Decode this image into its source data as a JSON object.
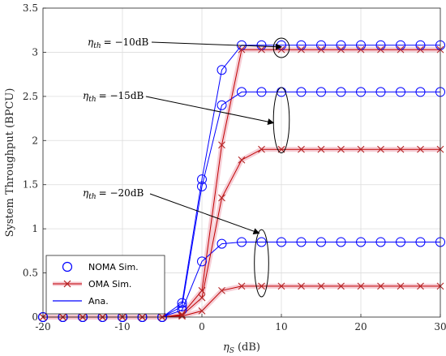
{
  "chart_data": {
    "type": "line",
    "title": "",
    "xlabel": "η_S (dB)",
    "ylabel": "System Throughput (BPCU)",
    "xlim": [
      -20,
      30
    ],
    "ylim": [
      0,
      3.5
    ],
    "xticks": [
      -20,
      -10,
      0,
      10,
      20,
      30
    ],
    "yticks": [
      0,
      0.5,
      1,
      1.5,
      2,
      2.5,
      3,
      3.5
    ],
    "xtick_labels": [
      "-20",
      "-10",
      "0",
      "10",
      "20",
      "30"
    ],
    "ytick_labels": [
      "0",
      "0.5",
      "1",
      "1.5",
      "2",
      "2.5",
      "3",
      "3.5"
    ],
    "grid": true,
    "legend_position": "bottom-left",
    "legend": [
      {
        "label": "NOMA Sim.",
        "style": "circle",
        "color": "#0000ff"
      },
      {
        "label": "OMA Sim.",
        "style": "cross",
        "color": "#b22222"
      },
      {
        "label": "Ana.",
        "style": "line",
        "color": "#0000ff"
      }
    ],
    "x_noma": [
      -20,
      -17.5,
      -15,
      -12.5,
      -10,
      -7.5,
      -5,
      -2.5,
      0,
      2.5,
      5,
      7.5,
      10,
      12.5,
      15,
      17.5,
      20,
      22.5,
      25,
      27.5,
      30
    ],
    "x_oma": [
      -20,
      -17.5,
      -15,
      -12.5,
      -10,
      -7.5,
      -5,
      -2.5,
      0,
      2.5,
      5,
      7.5,
      10,
      12.5,
      15,
      17.5,
      20,
      22.5,
      25,
      27.5,
      30
    ],
    "series": [
      {
        "group": "η_th = −10dB",
        "scheme": "NOMA",
        "values": [
          0,
          0,
          0,
          0,
          0,
          0,
          0,
          0.16,
          1.56,
          2.8,
          3.08,
          3.08,
          3.08,
          3.08,
          3.08,
          3.08,
          3.08,
          3.08,
          3.08,
          3.08,
          3.08
        ]
      },
      {
        "group": "η_th = −15dB",
        "scheme": "NOMA",
        "values": [
          0,
          0,
          0,
          0,
          0,
          0,
          0,
          0.12,
          1.48,
          2.4,
          2.55,
          2.55,
          2.55,
          2.55,
          2.55,
          2.55,
          2.55,
          2.55,
          2.55,
          2.55,
          2.55
        ]
      },
      {
        "group": "η_th = −20dB",
        "scheme": "NOMA",
        "values": [
          0,
          0,
          0,
          0,
          0,
          0,
          0,
          0.08,
          0.63,
          0.83,
          0.85,
          0.85,
          0.85,
          0.85,
          0.85,
          0.85,
          0.85,
          0.85,
          0.85,
          0.85,
          0.85
        ]
      },
      {
        "group": "η_th = −10dB",
        "scheme": "OMA",
        "values": [
          0,
          0,
          0,
          0,
          0,
          0,
          0,
          0.03,
          0.3,
          1.95,
          3.03,
          3.03,
          3.03,
          3.03,
          3.03,
          3.03,
          3.03,
          3.03,
          3.03,
          3.03,
          3.03
        ]
      },
      {
        "group": "η_th = −15dB",
        "scheme": "OMA",
        "values": [
          0,
          0,
          0,
          0,
          0,
          0,
          0,
          0.02,
          0.22,
          1.35,
          1.78,
          1.9,
          1.9,
          1.9,
          1.9,
          1.9,
          1.9,
          1.9,
          1.9,
          1.9,
          1.9
        ]
      },
      {
        "group": "η_th = −20dB",
        "scheme": "OMA",
        "values": [
          0,
          0,
          0,
          0,
          0,
          0,
          0,
          0.01,
          0.07,
          0.3,
          0.35,
          0.35,
          0.35,
          0.35,
          0.35,
          0.35,
          0.35,
          0.35,
          0.35,
          0.35,
          0.35
        ]
      }
    ],
    "annotations": [
      {
        "text": "= −10dB",
        "arrow_to": [
          10,
          3.06
        ]
      },
      {
        "text": "= −15dB",
        "arrow_to": [
          9,
          2.2
        ]
      },
      {
        "text": "= −20dB",
        "arrow_to": [
          7.2,
          0.95
        ]
      }
    ],
    "annotation_symbol": "η",
    "annotation_subscript": "th",
    "xlabel_symbol": "η",
    "xlabel_subscript": "S",
    "xlabel_unit": "(dB)",
    "ellipses": [
      {
        "cx": 10,
        "cy": 3.05,
        "rx": 1,
        "ry": 0.11
      },
      {
        "cx": 10,
        "cy": 2.23,
        "rx": 1,
        "ry": 0.37
      },
      {
        "cx": 7.5,
        "cy": 0.61,
        "rx": 0.9,
        "ry": 0.38
      }
    ],
    "colors": {
      "noma": "#0000ff",
      "oma": "#b22222",
      "ana": "#0000ff",
      "oma_ana": "#c00000",
      "highlight": "#f5c6cf"
    }
  }
}
